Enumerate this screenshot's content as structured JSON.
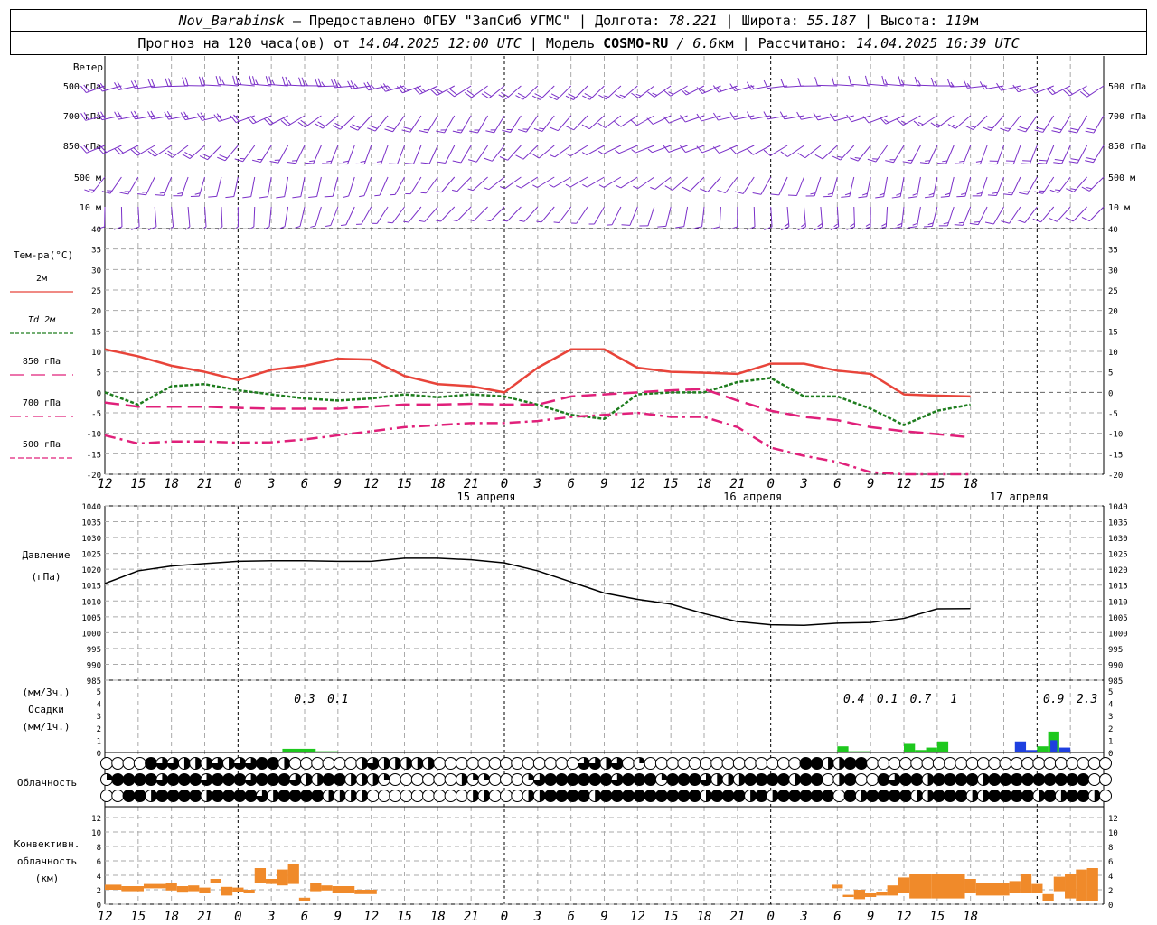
{
  "header": {
    "station": "Nov_Barabinsk",
    "provider": "— Предоставлено ФГБУ \"ЗапСиб УГМС\"",
    "lon_label": "Долгота:",
    "lon": "78.221",
    "lat_label": "Широта:",
    "lat": "55.187",
    "alt_label": "Высота:",
    "alt": "119",
    "alt_unit": "м",
    "forecast_label": "Прогноз на 120 часа(ов) от",
    "forecast_start": "14.04.2025 12:00 UTC",
    "model_label": "Модель",
    "model": "COSMO-RU",
    "model_res": "/ 6.6",
    "model_res_unit": "км",
    "computed_label": "Рассчитано:",
    "computed": "14.04.2025 16:39 UTC"
  },
  "wind_panel": {
    "title": "Ветер",
    "levels": [
      "500 гПа",
      "700 гПа",
      "850 гПа",
      "500 м",
      "10 м"
    ]
  },
  "temp_panel": {
    "title": "Тем-ра(°С)",
    "legend": [
      {
        "label": "2м",
        "color": "#e8443a",
        "style": "solid"
      },
      {
        "label": "Td 2м",
        "color": "#1e7d1e",
        "style": "dotted"
      },
      {
        "label": "850 гПа",
        "color": "#e0207a",
        "style": "longdash"
      },
      {
        "label": "700 гПа",
        "color": "#e0207a",
        "style": "dash"
      },
      {
        "label": "500 гПа",
        "color": "#e0207a",
        "style": "dashdot"
      }
    ]
  },
  "pressure_panel": {
    "title": "Давление",
    "unit": "(гПа)"
  },
  "precip_panel": {
    "unit3": "(мм/3ч.)",
    "title": "Осадки",
    "unit1": "(мм/1ч.)"
  },
  "cloud_panel": {
    "title": "Облачность"
  },
  "conv_panel": {
    "title1": "Конвективн.",
    "title2": "облачность",
    "unit": "(км)"
  },
  "date_labels": [
    "15 апреля",
    "16 апреля",
    "17 апреля"
  ],
  "hour_labels": [
    "12",
    "15",
    "18",
    "21",
    "0",
    "3",
    "6",
    "9",
    "12",
    "15",
    "18",
    "21",
    "0",
    "3",
    "6",
    "9",
    "12",
    "15",
    "18",
    "21",
    "0",
    "3",
    "6",
    "9",
    "12",
    "15",
    "18"
  ],
  "chart_data": [
    {
      "type": "line",
      "name": "temperature",
      "x_hours": [
        0,
        3,
        6,
        9,
        12,
        15,
        18,
        21,
        24,
        27,
        30,
        33,
        36,
        39,
        42,
        45,
        48,
        51,
        54,
        57,
        60,
        63,
        66,
        69,
        72,
        75,
        78
      ],
      "ylim": [
        -20,
        40
      ],
      "yticks": [
        -20,
        -15,
        -10,
        -5,
        0,
        5,
        10,
        15,
        20,
        25,
        30,
        35,
        40
      ],
      "series": [
        {
          "name": "2м",
          "values": [
            10.5,
            8.8,
            6.5,
            5,
            3,
            5.5,
            6.5,
            8.2,
            8,
            4,
            2,
            1.5,
            0,
            6,
            10.5,
            10.5,
            6,
            5,
            4.8,
            4.5,
            7,
            7,
            5.3,
            4.5,
            -0.5,
            -0.8,
            -1
          ]
        },
        {
          "name": "Td 2м",
          "values": [
            0,
            -3,
            1.5,
            2,
            0.5,
            -0.5,
            -1.5,
            -2,
            -1.5,
            -0.5,
            -1.2,
            -0.5,
            -1,
            -3,
            -5.5,
            -6.5,
            -0.5,
            0,
            0,
            2.5,
            3.5,
            -1,
            -1,
            -4,
            -8,
            -4.5,
            -3
          ]
        },
        {
          "name": "850 гПа",
          "values": [
            -2.5,
            -3.5,
            -3.5,
            -3.5,
            -3.8,
            -4,
            -4,
            -4,
            -3.5,
            -3,
            -3,
            -2.8,
            -3,
            -3,
            -1,
            -0.5,
            0,
            0.5,
            0.8,
            -2,
            -4.5,
            -6,
            -6.8,
            -8.5,
            -9.5,
            -10.2,
            -11
          ]
        },
        {
          "name": "700 гПа",
          "values": [
            -10.5,
            -12.5,
            -12,
            -12,
            -12.3,
            -12.2,
            -11.5,
            -10.5,
            -9.5,
            -8.5,
            -8,
            -7.5,
            -7.5,
            -7,
            -6,
            -5.5,
            -5,
            -6,
            -6,
            -8.5,
            -13.5,
            -15.5,
            -17,
            -19.5,
            -20,
            -20,
            -20
          ]
        }
      ]
    },
    {
      "type": "line",
      "name": "pressure",
      "x_hours": [
        0,
        3,
        6,
        9,
        12,
        15,
        18,
        21,
        24,
        27,
        30,
        33,
        36,
        39,
        42,
        45,
        48,
        51,
        54,
        57,
        60,
        63,
        66,
        69,
        72,
        75,
        78
      ],
      "ylim": [
        985,
        1040
      ],
      "yticks": [
        985,
        990,
        995,
        1000,
        1005,
        1010,
        1015,
        1020,
        1025,
        1030,
        1035,
        1040
      ],
      "series": [
        {
          "name": "pressure",
          "values": [
            1015.5,
            1019.5,
            1021,
            1021.8,
            1022.5,
            1022.7,
            1022.7,
            1022.5,
            1022.5,
            1023.5,
            1023.5,
            1023,
            1022,
            1019.5,
            1016,
            1012.5,
            1010.5,
            1009,
            1006,
            1003.5,
            1002.5,
            1002.3,
            1003,
            1003.2,
            1004.5,
            1007.5,
            1007.6
          ]
        }
      ]
    },
    {
      "type": "bar",
      "name": "precipitation",
      "totals": [
        {
          "label": "0.3",
          "x_hour": 18
        },
        {
          "label": "0.1",
          "x_hour": 21
        },
        {
          "label": "0.4",
          "x_hour": 67.5
        },
        {
          "label": "0.1",
          "x_hour": 70.5
        },
        {
          "label": "0.7",
          "x_hour": 73.5
        },
        {
          "label": "1",
          "x_hour": 76.5
        },
        {
          "label": "0.9",
          "x_hour": 85.5
        },
        {
          "label": "2.3",
          "x_hour": 88.5
        }
      ],
      "ylim": [
        0,
        5
      ],
      "bars": [
        {
          "x_hour": 16,
          "w": 3,
          "value": 0.3,
          "color": "#1ec81e"
        },
        {
          "x_hour": 19,
          "w": 2,
          "value": 0.1,
          "color": "#1ec81e"
        },
        {
          "x_hour": 66,
          "w": 1,
          "value": 0.5,
          "color": "#1ec81e"
        },
        {
          "x_hour": 67,
          "w": 2,
          "value": 0.1,
          "color": "#1ec81e"
        },
        {
          "x_hour": 72,
          "w": 1,
          "value": 0.7,
          "color": "#1ec81e"
        },
        {
          "x_hour": 73,
          "w": 1,
          "value": 0.2,
          "color": "#1ec81e"
        },
        {
          "x_hour": 74,
          "w": 1,
          "value": 0.4,
          "color": "#1ec81e"
        },
        {
          "x_hour": 75,
          "w": 1,
          "value": 0.9,
          "color": "#1ec81e"
        },
        {
          "x_hour": 82,
          "w": 1,
          "value": 0.9,
          "color": "#1e40e0"
        },
        {
          "x_hour": 83,
          "w": 1,
          "value": 0.2,
          "color": "#1e40e0"
        },
        {
          "x_hour": 84,
          "w": 1,
          "value": 0.5,
          "color": "#1ec81e"
        },
        {
          "x_hour": 85,
          "w": 1,
          "value": 1.7,
          "color": "#1ec81e"
        },
        {
          "x_hour": 85.2,
          "w": 0.6,
          "value": 1.0,
          "color": "#1e40e0"
        },
        {
          "x_hour": 86,
          "w": 1,
          "value": 0.4,
          "color": "#1e40e0"
        }
      ]
    },
    {
      "type": "bar",
      "name": "convective_clouds",
      "ylim": [
        0,
        13
      ],
      "yticks": [
        0,
        2,
        4,
        6,
        8,
        10,
        12
      ],
      "bars": [
        {
          "x_hour": 0,
          "w": 1.5,
          "bottom": 2.0,
          "top": 2.7
        },
        {
          "x_hour": 1.5,
          "w": 2,
          "bottom": 1.8,
          "top": 2.5
        },
        {
          "x_hour": 3.5,
          "w": 2,
          "bottom": 2.2,
          "top": 2.8
        },
        {
          "x_hour": 5.5,
          "w": 1,
          "bottom": 1.9,
          "top": 2.9
        },
        {
          "x_hour": 6.5,
          "w": 1,
          "bottom": 1.6,
          "top": 2.5
        },
        {
          "x_hour": 7.5,
          "w": 1,
          "bottom": 1.8,
          "top": 2.6
        },
        {
          "x_hour": 8.5,
          "w": 1,
          "bottom": 1.5,
          "top": 2.3
        },
        {
          "x_hour": 9.5,
          "w": 1,
          "bottom": 3.0,
          "top": 3.5
        },
        {
          "x_hour": 10.5,
          "w": 1,
          "bottom": 1.2,
          "top": 2.4
        },
        {
          "x_hour": 11.5,
          "w": 1,
          "bottom": 1.7,
          "top": 2.3
        },
        {
          "x_hour": 12.5,
          "w": 1,
          "bottom": 1.5,
          "top": 2.0
        },
        {
          "x_hour": 13.5,
          "w": 1,
          "bottom": 3.0,
          "top": 5.0
        },
        {
          "x_hour": 14.5,
          "w": 1,
          "bottom": 2.8,
          "top": 3.5
        },
        {
          "x_hour": 15.5,
          "w": 1,
          "bottom": 2.6,
          "top": 4.8
        },
        {
          "x_hour": 16.5,
          "w": 1,
          "bottom": 2.8,
          "top": 5.5
        },
        {
          "x_hour": 17.5,
          "w": 1,
          "bottom": 0.5,
          "top": 0.9
        },
        {
          "x_hour": 18.5,
          "w": 1,
          "bottom": 1.8,
          "top": 3.0
        },
        {
          "x_hour": 19.5,
          "w": 1,
          "bottom": 1.9,
          "top": 2.6
        },
        {
          "x_hour": 20.5,
          "w": 2,
          "bottom": 1.5,
          "top": 2.5
        },
        {
          "x_hour": 22.5,
          "w": 2,
          "bottom": 1.4,
          "top": 2.0
        },
        {
          "x_hour": 65.5,
          "w": 1,
          "bottom": 2.2,
          "top": 2.7
        },
        {
          "x_hour": 66.5,
          "w": 1,
          "bottom": 1.0,
          "top": 1.3
        },
        {
          "x_hour": 67.5,
          "w": 1,
          "bottom": 0.7,
          "top": 2.0
        },
        {
          "x_hour": 68.5,
          "w": 1,
          "bottom": 1.0,
          "top": 1.5
        },
        {
          "x_hour": 69.5,
          "w": 1,
          "bottom": 1.2,
          "top": 1.7
        },
        {
          "x_hour": 70.5,
          "w": 1,
          "bottom": 1.2,
          "top": 2.6
        },
        {
          "x_hour": 71.5,
          "w": 1,
          "bottom": 1.5,
          "top": 3.7
        },
        {
          "x_hour": 72.5,
          "w": 2,
          "bottom": 0.8,
          "top": 4.2
        },
        {
          "x_hour": 74.5,
          "w": 3,
          "bottom": 0.8,
          "top": 4.2
        },
        {
          "x_hour": 77.5,
          "w": 1,
          "bottom": 1.5,
          "top": 3.5
        },
        {
          "x_hour": 78.5,
          "w": 3,
          "bottom": 1.2,
          "top": 3.0
        },
        {
          "x_hour": 81.5,
          "w": 1,
          "bottom": 1.5,
          "top": 3.2
        },
        {
          "x_hour": 82.5,
          "w": 1,
          "bottom": 1.5,
          "top": 4.2
        },
        {
          "x_hour": 83.5,
          "w": 1,
          "bottom": 1.5,
          "top": 2.8
        },
        {
          "x_hour": 84.5,
          "w": 1,
          "bottom": 0.5,
          "top": 1.4
        },
        {
          "x_hour": 85.5,
          "w": 1,
          "bottom": 1.8,
          "top": 3.8
        },
        {
          "x_hour": 86.5,
          "w": 1,
          "bottom": 0.8,
          "top": 4.2
        },
        {
          "x_hour": 87.5,
          "w": 1,
          "bottom": 0.5,
          "top": 4.8
        },
        {
          "x_hour": 88.5,
          "w": 1,
          "bottom": 0.5,
          "top": 5.0
        }
      ]
    }
  ]
}
